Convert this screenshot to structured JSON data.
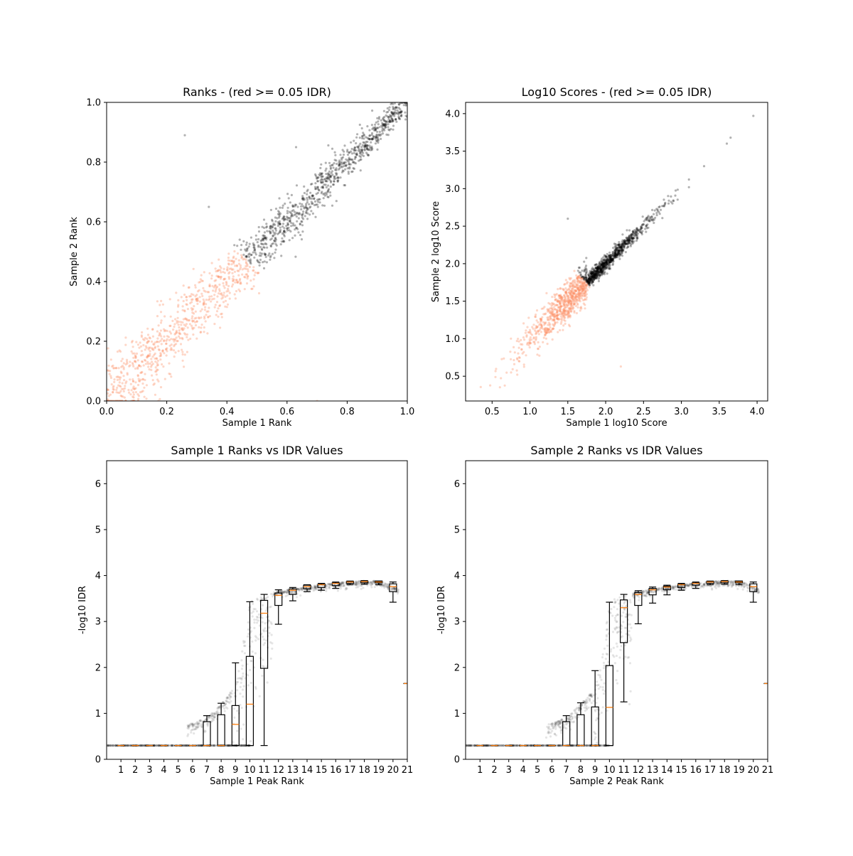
{
  "chart_data": [
    {
      "type": "scatter",
      "title": "Ranks - (red >= 0.05 IDR)",
      "xlabel": "Sample 1 Rank",
      "ylabel": "Sample 2 Rank",
      "xlim": [
        0,
        1
      ],
      "ylim": [
        0,
        1
      ],
      "xticks": [
        "0.0",
        "0.2",
        "0.4",
        "0.6",
        "0.8",
        "1.0"
      ],
      "yticks": [
        "0.0",
        "0.2",
        "0.4",
        "0.6",
        "0.8",
        "1.0"
      ],
      "grid": false,
      "colors": {
        "pass": "#000000",
        "fail": "#fc8d62"
      },
      "points_model": {
        "n": 1600,
        "relation": "y = x + noise",
        "noise_sd_low": 0.07,
        "noise_sd_high": 0.02,
        "fail_if_mean_rank_below": 0.47,
        "seed": 11
      },
      "outliers": [
        [
          0.26,
          0.89
        ],
        [
          0.63,
          0.85
        ],
        [
          0.34,
          0.65
        ],
        [
          0.7,
          0.0
        ]
      ]
    },
    {
      "type": "scatter",
      "title": "Log10 Scores - (red >= 0.05 IDR)",
      "xlabel": "Sample 1 log10 Score",
      "ylabel": "Sample 2 log10 Score",
      "xlim": [
        0.15,
        4.14
      ],
      "ylim": [
        0.17,
        4.15
      ],
      "xticks": [
        "0.5",
        "1.0",
        "1.5",
        "2.0",
        "2.5",
        "3.0",
        "3.5",
        "4.0"
      ],
      "yticks": [
        "0.5",
        "1.0",
        "1.5",
        "2.0",
        "2.5",
        "3.0",
        "3.5",
        "4.0"
      ],
      "grid": false,
      "colors": {
        "pass": "#000000",
        "fail": "#fc8d62"
      },
      "points_model": {
        "n": 1600,
        "x_mean": 1.75,
        "x_sd": 0.42,
        "x_range": [
          0.35,
          3.1
        ],
        "relation": "y = x + noise",
        "noise_sd_fail": 0.13,
        "noise_sd_pass": 0.05,
        "fail_if_sum_below": 3.5,
        "seed": 23
      },
      "outliers": [
        [
          3.95,
          3.97
        ],
        [
          3.65,
          3.68
        ],
        [
          3.6,
          3.6
        ],
        [
          3.3,
          3.3
        ],
        [
          1.5,
          2.6
        ],
        [
          2.2,
          0.63
        ]
      ]
    },
    {
      "type": "box",
      "title": "Sample 1 Ranks vs IDR Values",
      "xlabel": "Sample 1 Peak Rank",
      "ylabel": "-log10 IDR",
      "xlim": [
        0,
        21
      ],
      "ylim": [
        0,
        6.5
      ],
      "xticks": [
        "1",
        "2",
        "3",
        "4",
        "5",
        "6",
        "7",
        "8",
        "9",
        "10",
        "11",
        "12",
        "13",
        "14",
        "15",
        "16",
        "17",
        "18",
        "19",
        "20",
        "21"
      ],
      "yticks": [
        "0",
        "1",
        "2",
        "3",
        "4",
        "5",
        "6"
      ],
      "colors": {
        "median": "#ff7f0e",
        "points": "#000000"
      },
      "boxes": [
        {
          "pos": 1,
          "wlo": 0.3,
          "q1": 0.3,
          "med": 0.3,
          "q3": 0.3,
          "whi": 0.3
        },
        {
          "pos": 2,
          "wlo": 0.3,
          "q1": 0.3,
          "med": 0.3,
          "q3": 0.3,
          "whi": 0.3
        },
        {
          "pos": 3,
          "wlo": 0.3,
          "q1": 0.3,
          "med": 0.3,
          "q3": 0.3,
          "whi": 0.3
        },
        {
          "pos": 4,
          "wlo": 0.3,
          "q1": 0.3,
          "med": 0.3,
          "q3": 0.3,
          "whi": 0.3
        },
        {
          "pos": 5,
          "wlo": 0.3,
          "q1": 0.3,
          "med": 0.3,
          "q3": 0.3,
          "whi": 0.3
        },
        {
          "pos": 6,
          "wlo": 0.3,
          "q1": 0.3,
          "med": 0.3,
          "q3": 0.3,
          "whi": 0.3
        },
        {
          "pos": 7,
          "wlo": 0.3,
          "q1": 0.3,
          "med": 0.3,
          "q3": 0.82,
          "whi": 0.95
        },
        {
          "pos": 8,
          "wlo": 0.3,
          "q1": 0.3,
          "med": 0.3,
          "q3": 0.97,
          "whi": 1.22
        },
        {
          "pos": 9,
          "wlo": 0.3,
          "q1": 0.3,
          "med": 0.76,
          "q3": 1.17,
          "whi": 2.1
        },
        {
          "pos": 10,
          "wlo": 0.3,
          "q1": 0.3,
          "med": 1.2,
          "q3": 2.24,
          "whi": 3.43
        },
        {
          "pos": 11,
          "wlo": 0.3,
          "q1": 1.98,
          "med": 3.18,
          "q3": 3.46,
          "whi": 3.59
        },
        {
          "pos": 12,
          "wlo": 2.94,
          "q1": 3.35,
          "med": 3.57,
          "q3": 3.62,
          "whi": 3.69
        },
        {
          "pos": 13,
          "wlo": 3.45,
          "q1": 3.59,
          "med": 3.68,
          "q3": 3.71,
          "whi": 3.74
        },
        {
          "pos": 14,
          "wlo": 3.65,
          "q1": 3.71,
          "med": 3.76,
          "q3": 3.79,
          "whi": 3.8
        },
        {
          "pos": 15,
          "wlo": 3.68,
          "q1": 3.74,
          "med": 3.8,
          "q3": 3.81,
          "whi": 3.83
        },
        {
          "pos": 16,
          "wlo": 3.72,
          "q1": 3.78,
          "med": 3.83,
          "q3": 3.84,
          "whi": 3.86
        },
        {
          "pos": 17,
          "wlo": 3.8,
          "q1": 3.83,
          "med": 3.86,
          "q3": 3.87,
          "whi": 3.88
        },
        {
          "pos": 18,
          "wlo": 3.81,
          "q1": 3.84,
          "med": 3.87,
          "q3": 3.88,
          "whi": 3.89
        },
        {
          "pos": 19,
          "wlo": 3.8,
          "q1": 3.84,
          "med": 3.86,
          "q3": 3.88,
          "whi": 3.88
        },
        {
          "pos": 20,
          "wlo": 3.42,
          "q1": 3.65,
          "med": 3.76,
          "q3": 3.82,
          "whi": 3.86
        },
        {
          "pos": 21,
          "wlo": 1.65,
          "q1": 1.65,
          "med": 1.65,
          "q3": 1.65,
          "whi": 1.65
        }
      ],
      "points_model": {
        "n": 1300,
        "baseline": 0.3,
        "baseline_range": [
          0,
          10
        ],
        "curve": [
          [
            5.6,
            0.75
          ],
          [
            7,
            0.9
          ],
          [
            8,
            1.2
          ],
          [
            9,
            1.6
          ],
          [
            9.5,
            2.5
          ],
          [
            10,
            3.4
          ],
          [
            10.3,
            3.5
          ],
          [
            11,
            3.58
          ],
          [
            12,
            3.66
          ],
          [
            14,
            3.76
          ],
          [
            16,
            3.84
          ],
          [
            18,
            3.89
          ],
          [
            19,
            3.88
          ],
          [
            19.6,
            3.82
          ],
          [
            20,
            3.76
          ],
          [
            20.4,
            3.7
          ]
        ],
        "seed": 37
      }
    },
    {
      "type": "box",
      "title": "Sample 2 Ranks vs IDR Values",
      "xlabel": "Sample 2 Peak Rank",
      "ylabel": "-log10 IDR",
      "xlim": [
        0,
        21
      ],
      "ylim": [
        0,
        6.5
      ],
      "xticks": [
        "1",
        "2",
        "3",
        "4",
        "5",
        "6",
        "7",
        "8",
        "9",
        "10",
        "11",
        "12",
        "13",
        "14",
        "15",
        "16",
        "17",
        "18",
        "19",
        "20",
        "21"
      ],
      "yticks": [
        "0",
        "1",
        "2",
        "3",
        "4",
        "5",
        "6"
      ],
      "colors": {
        "median": "#ff7f0e",
        "points": "#000000"
      },
      "boxes": [
        {
          "pos": 1,
          "wlo": 0.3,
          "q1": 0.3,
          "med": 0.3,
          "q3": 0.3,
          "whi": 0.3
        },
        {
          "pos": 2,
          "wlo": 0.3,
          "q1": 0.3,
          "med": 0.3,
          "q3": 0.3,
          "whi": 0.3
        },
        {
          "pos": 3,
          "wlo": 0.3,
          "q1": 0.3,
          "med": 0.3,
          "q3": 0.3,
          "whi": 0.3
        },
        {
          "pos": 4,
          "wlo": 0.3,
          "q1": 0.3,
          "med": 0.3,
          "q3": 0.3,
          "whi": 0.3
        },
        {
          "pos": 5,
          "wlo": 0.3,
          "q1": 0.3,
          "med": 0.3,
          "q3": 0.3,
          "whi": 0.3
        },
        {
          "pos": 6,
          "wlo": 0.3,
          "q1": 0.3,
          "med": 0.3,
          "q3": 0.3,
          "whi": 0.3
        },
        {
          "pos": 7,
          "wlo": 0.3,
          "q1": 0.3,
          "med": 0.3,
          "q3": 0.82,
          "whi": 0.95
        },
        {
          "pos": 8,
          "wlo": 0.3,
          "q1": 0.3,
          "med": 0.3,
          "q3": 0.97,
          "whi": 1.23
        },
        {
          "pos": 9,
          "wlo": 0.3,
          "q1": 0.3,
          "med": 0.3,
          "q3": 1.14,
          "whi": 1.93
        },
        {
          "pos": 10,
          "wlo": 0.3,
          "q1": 0.3,
          "med": 1.13,
          "q3": 2.04,
          "whi": 3.42
        },
        {
          "pos": 11,
          "wlo": 1.25,
          "q1": 2.54,
          "med": 3.3,
          "q3": 3.47,
          "whi": 3.59
        },
        {
          "pos": 12,
          "wlo": 2.95,
          "q1": 3.35,
          "med": 3.59,
          "q3": 3.63,
          "whi": 3.67
        },
        {
          "pos": 13,
          "wlo": 3.4,
          "q1": 3.58,
          "med": 3.69,
          "q3": 3.72,
          "whi": 3.75
        },
        {
          "pos": 14,
          "wlo": 3.58,
          "q1": 3.69,
          "med": 3.75,
          "q3": 3.77,
          "whi": 3.79
        },
        {
          "pos": 15,
          "wlo": 3.68,
          "q1": 3.74,
          "med": 3.8,
          "q3": 3.81,
          "whi": 3.83
        },
        {
          "pos": 16,
          "wlo": 3.72,
          "q1": 3.79,
          "med": 3.83,
          "q3": 3.84,
          "whi": 3.86
        },
        {
          "pos": 17,
          "wlo": 3.8,
          "q1": 3.83,
          "med": 3.86,
          "q3": 3.87,
          "whi": 3.88
        },
        {
          "pos": 18,
          "wlo": 3.81,
          "q1": 3.84,
          "med": 3.87,
          "q3": 3.88,
          "whi": 3.89
        },
        {
          "pos": 19,
          "wlo": 3.8,
          "q1": 3.84,
          "med": 3.86,
          "q3": 3.88,
          "whi": 3.88
        },
        {
          "pos": 20,
          "wlo": 3.42,
          "q1": 3.65,
          "med": 3.76,
          "q3": 3.82,
          "whi": 3.86
        },
        {
          "pos": 21,
          "wlo": 1.65,
          "q1": 1.65,
          "med": 1.65,
          "q3": 1.65,
          "whi": 1.65
        }
      ],
      "points_model": {
        "n": 1300,
        "baseline": 0.3,
        "baseline_range": [
          0,
          10
        ],
        "curve": [
          [
            5.6,
            0.75
          ],
          [
            7,
            0.9
          ],
          [
            8,
            1.2
          ],
          [
            9,
            1.55
          ],
          [
            9.5,
            2.3
          ],
          [
            10,
            3.4
          ],
          [
            10.3,
            3.5
          ],
          [
            11,
            3.58
          ],
          [
            12,
            3.66
          ],
          [
            14,
            3.76
          ],
          [
            16,
            3.84
          ],
          [
            18,
            3.89
          ],
          [
            19,
            3.88
          ],
          [
            19.6,
            3.82
          ],
          [
            20,
            3.76
          ],
          [
            20.4,
            3.7
          ]
        ],
        "seed": 41
      }
    }
  ]
}
